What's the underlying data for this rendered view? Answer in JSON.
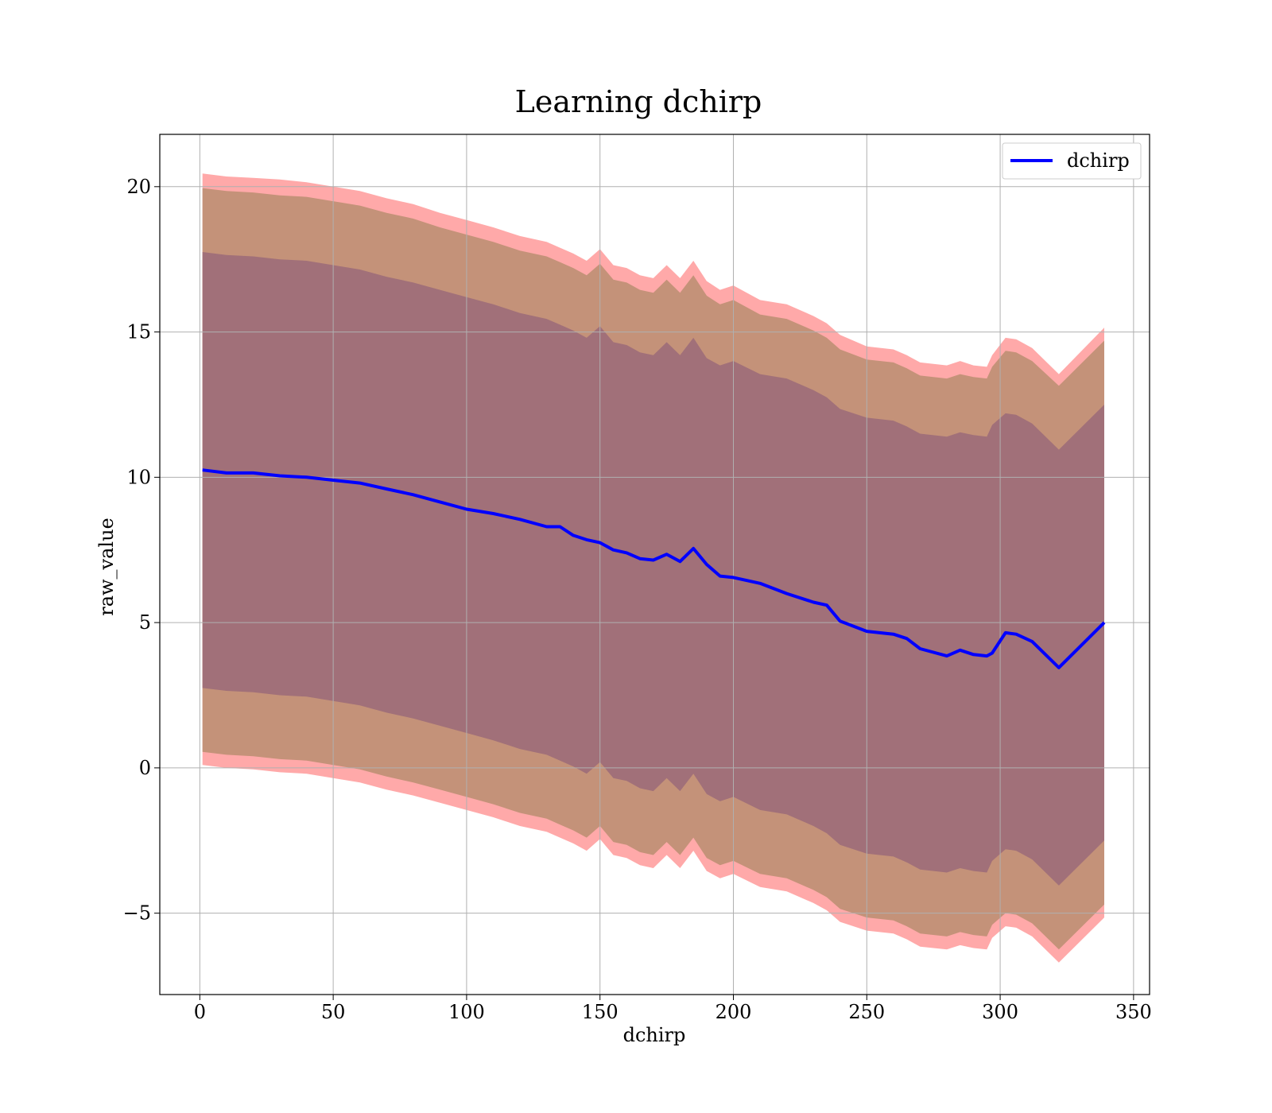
{
  "chart_data": {
    "type": "area",
    "title": "Learning dchirp",
    "xlabel": "dchirp",
    "ylabel": "raw_value",
    "xlim": [
      -15,
      356
    ],
    "ylim": [
      -7.8,
      21.8
    ],
    "xticks": [
      0,
      50,
      100,
      150,
      200,
      250,
      300,
      350
    ],
    "yticks": [
      -5,
      0,
      5,
      10,
      15,
      20
    ],
    "ytick_labels": [
      "−5",
      "0",
      "5",
      "10",
      "15",
      "20"
    ],
    "grid": true,
    "legend": {
      "position": "top-right",
      "entries": [
        "dchirp"
      ]
    },
    "colors": {
      "mean_line": "#0000ff",
      "band_outer": "#ff9a9a",
      "band_middle": "#c49279",
      "band_inner": "#a17079"
    },
    "series": [
      {
        "name": "dchirp",
        "x": [
          1,
          10,
          20,
          30,
          40,
          50,
          60,
          70,
          80,
          90,
          100,
          110,
          120,
          130,
          135,
          140,
          145,
          150,
          155,
          160,
          165,
          170,
          175,
          180,
          185,
          190,
          195,
          200,
          210,
          220,
          230,
          235,
          240,
          250,
          260,
          265,
          270,
          280,
          285,
          290,
          295,
          297,
          302,
          306,
          312,
          322,
          339
        ],
        "values": [
          10.25,
          10.15,
          10.15,
          10.05,
          10.0,
          9.9,
          9.8,
          9.6,
          9.4,
          9.15,
          8.9,
          8.75,
          8.55,
          8.3,
          8.3,
          8.0,
          7.85,
          7.75,
          7.5,
          7.4,
          7.2,
          7.15,
          7.35,
          7.1,
          7.55,
          7.0,
          6.6,
          6.55,
          6.35,
          6.0,
          5.7,
          5.6,
          5.05,
          4.7,
          4.6,
          4.45,
          4.1,
          3.85,
          4.05,
          3.9,
          3.85,
          3.95,
          4.65,
          4.6,
          4.35,
          3.45,
          5.0
        ]
      }
    ],
    "bands": {
      "outer_upper": [
        20.45,
        20.35,
        20.3,
        20.25,
        20.15,
        20.0,
        19.85,
        19.6,
        19.4,
        19.1,
        18.85,
        18.6,
        18.3,
        18.1,
        17.9,
        17.7,
        17.45,
        17.85,
        17.3,
        17.2,
        16.95,
        16.85,
        17.3,
        16.85,
        17.45,
        16.75,
        16.45,
        16.6,
        16.1,
        15.95,
        15.55,
        15.3,
        14.9,
        14.5,
        14.4,
        14.2,
        13.95,
        13.85,
        14.0,
        13.85,
        13.8,
        14.2,
        14.8,
        14.75,
        14.45,
        13.55,
        15.15
      ],
      "middle_upper": [
        19.95,
        19.85,
        19.8,
        19.7,
        19.65,
        19.5,
        19.35,
        19.1,
        18.9,
        18.6,
        18.35,
        18.1,
        17.8,
        17.6,
        17.4,
        17.2,
        16.95,
        17.35,
        16.8,
        16.7,
        16.45,
        16.35,
        16.8,
        16.35,
        16.95,
        16.25,
        15.95,
        16.1,
        15.6,
        15.45,
        15.05,
        14.8,
        14.4,
        14.05,
        13.95,
        13.75,
        13.5,
        13.4,
        13.55,
        13.45,
        13.4,
        13.8,
        14.35,
        14.3,
        14.0,
        13.15,
        14.7
      ],
      "inner_upper": [
        17.75,
        17.65,
        17.6,
        17.5,
        17.45,
        17.3,
        17.15,
        16.9,
        16.7,
        16.45,
        16.2,
        15.95,
        15.65,
        15.45,
        15.25,
        15.05,
        14.8,
        15.2,
        14.65,
        14.55,
        14.3,
        14.2,
        14.65,
        14.2,
        14.8,
        14.1,
        13.85,
        14.0,
        13.55,
        13.4,
        13.0,
        12.75,
        12.35,
        12.05,
        11.95,
        11.75,
        11.5,
        11.4,
        11.55,
        11.45,
        11.4,
        11.8,
        12.2,
        12.15,
        11.85,
        10.95,
        12.5
      ],
      "inner_lower": [
        2.75,
        2.65,
        2.6,
        2.5,
        2.45,
        2.3,
        2.15,
        1.9,
        1.7,
        1.45,
        1.2,
        0.95,
        0.65,
        0.45,
        0.25,
        0.05,
        -0.2,
        0.2,
        -0.35,
        -0.45,
        -0.7,
        -0.8,
        -0.35,
        -0.8,
        -0.2,
        -0.9,
        -1.15,
        -1.0,
        -1.45,
        -1.6,
        -2.0,
        -2.25,
        -2.65,
        -2.95,
        -3.05,
        -3.25,
        -3.5,
        -3.6,
        -3.45,
        -3.55,
        -3.6,
        -3.2,
        -2.8,
        -2.85,
        -3.15,
        -4.05,
        -2.5
      ],
      "middle_lower": [
        0.55,
        0.45,
        0.4,
        0.3,
        0.25,
        0.1,
        -0.05,
        -0.3,
        -0.5,
        -0.75,
        -1.0,
        -1.25,
        -1.55,
        -1.75,
        -1.95,
        -2.15,
        -2.4,
        -2.0,
        -2.55,
        -2.65,
        -2.9,
        -3.0,
        -2.55,
        -3.0,
        -2.4,
        -3.1,
        -3.35,
        -3.2,
        -3.65,
        -3.8,
        -4.2,
        -4.45,
        -4.85,
        -5.15,
        -5.25,
        -5.45,
        -5.7,
        -5.8,
        -5.65,
        -5.75,
        -5.8,
        -5.4,
        -5.0,
        -5.05,
        -5.35,
        -6.25,
        -4.7
      ],
      "outer_lower": [
        0.1,
        0.0,
        -0.05,
        -0.15,
        -0.2,
        -0.35,
        -0.5,
        -0.75,
        -0.95,
        -1.2,
        -1.45,
        -1.7,
        -2.0,
        -2.2,
        -2.4,
        -2.6,
        -2.85,
        -2.45,
        -3.0,
        -3.1,
        -3.35,
        -3.45,
        -3.0,
        -3.45,
        -2.85,
        -3.55,
        -3.8,
        -3.65,
        -4.1,
        -4.25,
        -4.65,
        -4.9,
        -5.3,
        -5.6,
        -5.7,
        -5.9,
        -6.15,
        -6.25,
        -6.1,
        -6.2,
        -6.25,
        -5.85,
        -5.45,
        -5.5,
        -5.8,
        -6.7,
        -5.15
      ]
    }
  }
}
